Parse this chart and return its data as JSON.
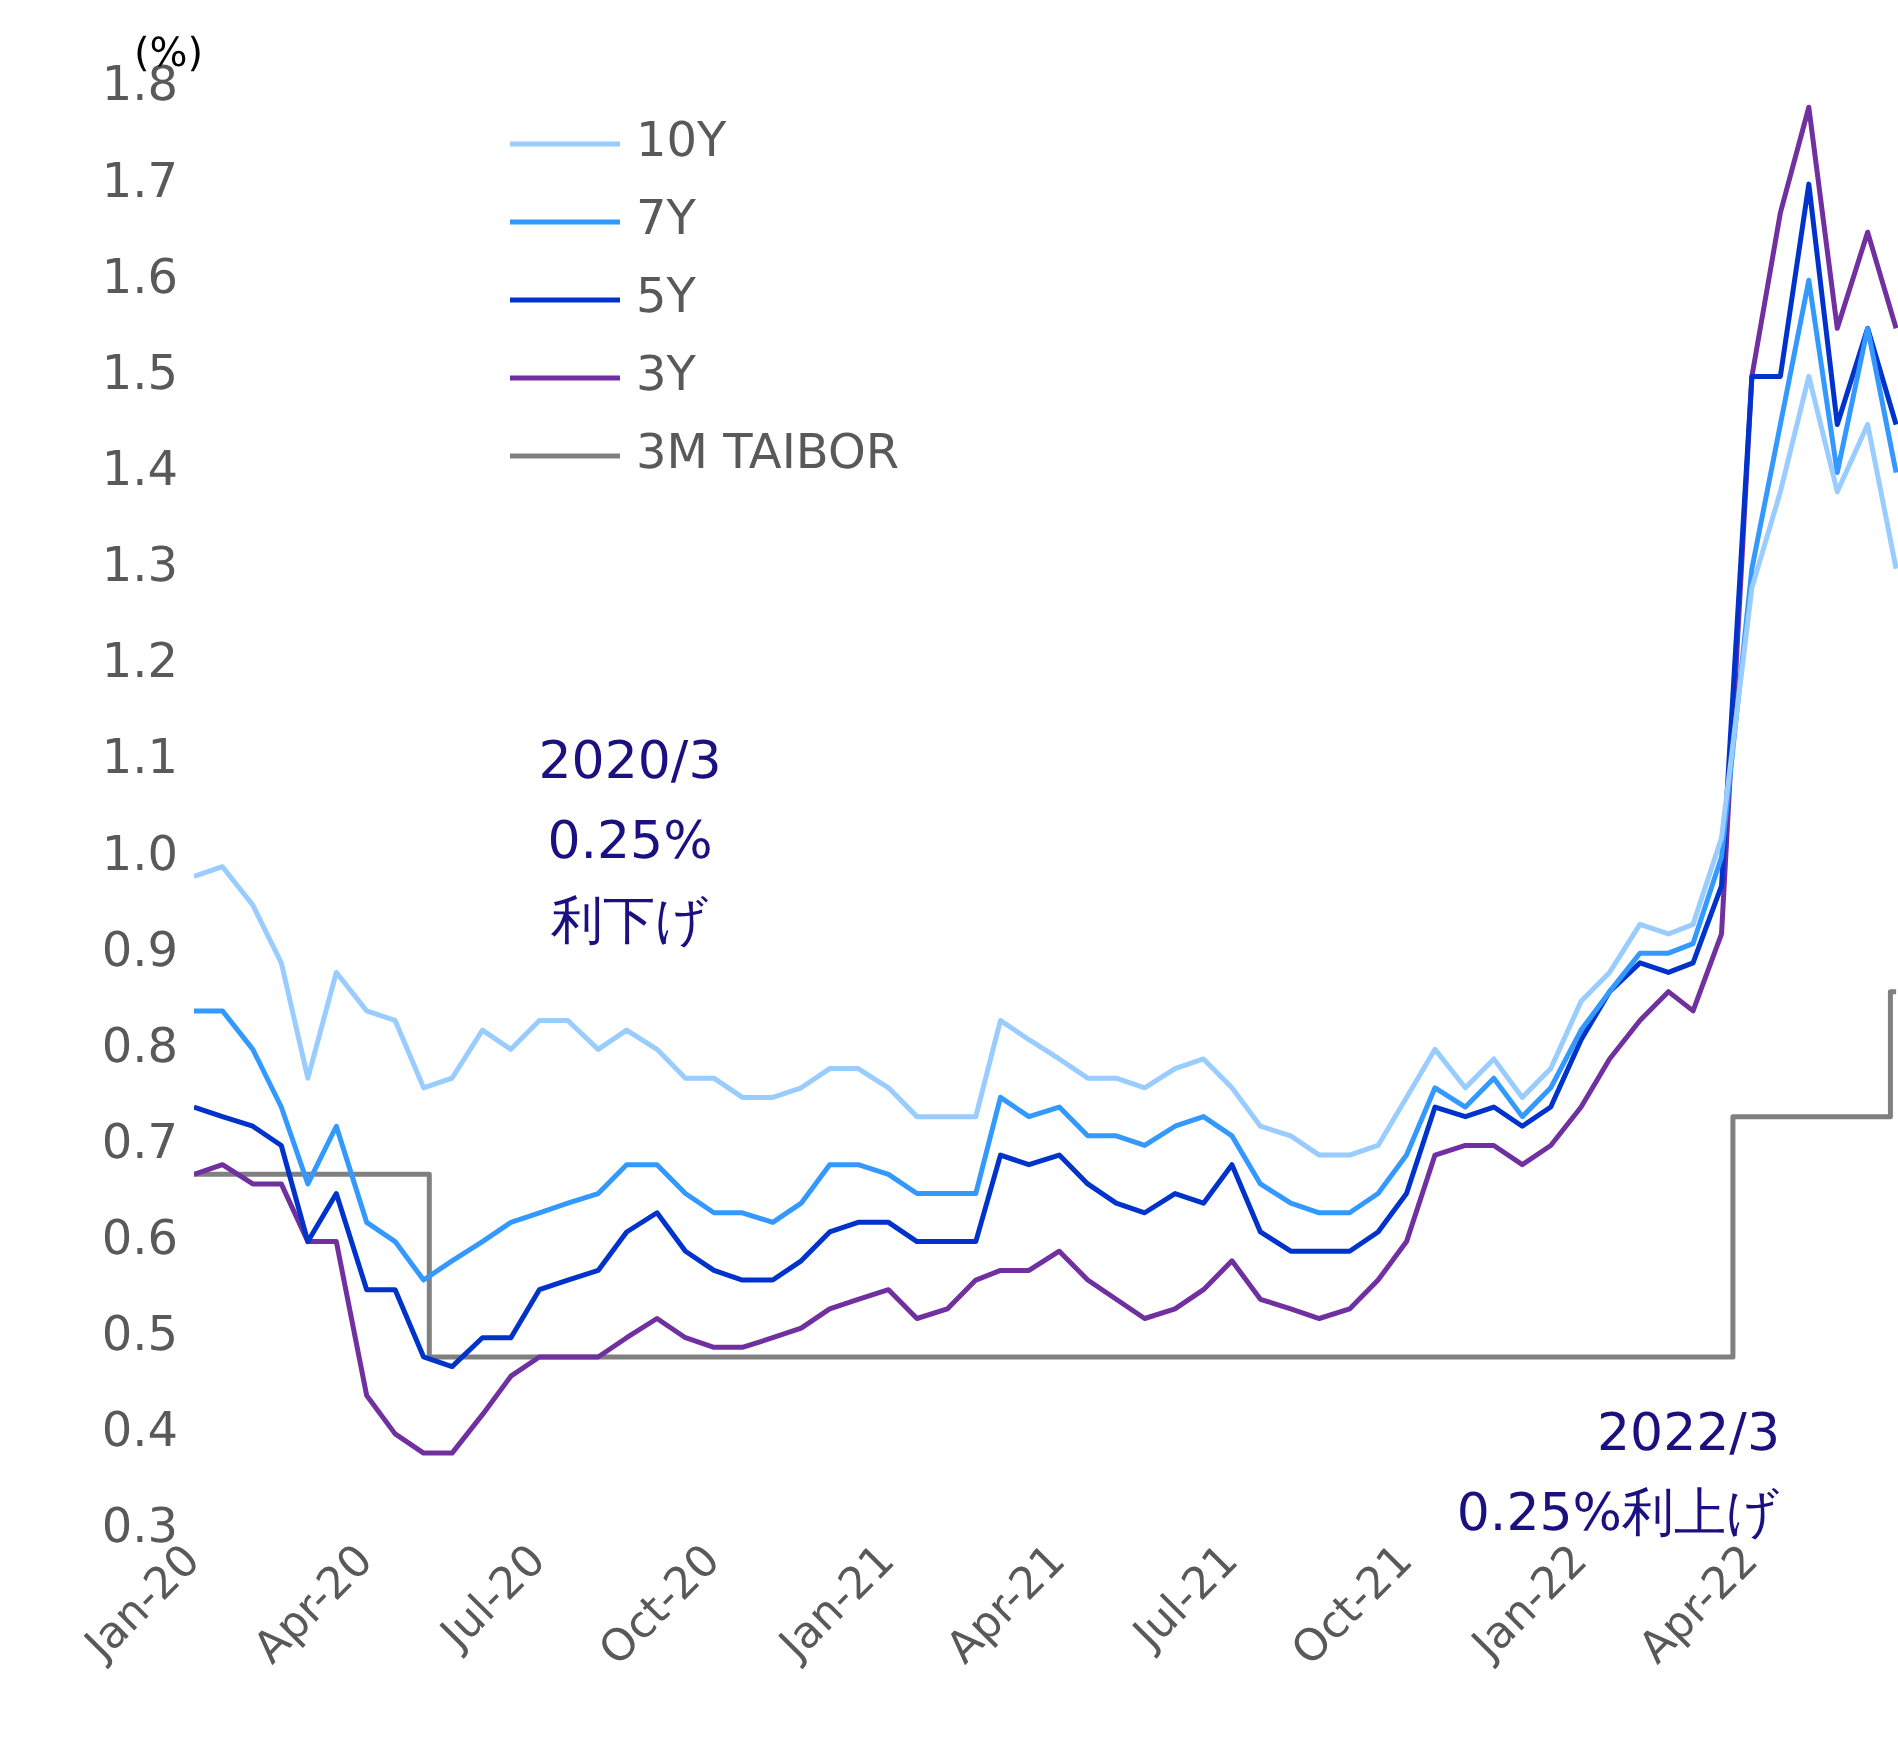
{
  "chart_data": {
    "type": "line",
    "ylabel": "(%)",
    "annotations": [
      "2020/3\n0.25%\n利下げ",
      "2022/3\n0.25%利上げ"
    ],
    "x": [
      "2020-01-01",
      "2020-01-16",
      "2020-02-01",
      "2020-02-16",
      "2020-03-01",
      "2020-03-16",
      "2020-04-01",
      "2020-04-16",
      "2020-05-01",
      "2020-05-16",
      "2020-06-01",
      "2020-06-16",
      "2020-07-01",
      "2020-07-16",
      "2020-08-01",
      "2020-08-16",
      "2020-09-01",
      "2020-09-16",
      "2020-10-01",
      "2020-10-16",
      "2020-11-01",
      "2020-11-16",
      "2020-12-01",
      "2020-12-16",
      "2021-01-01",
      "2021-01-16",
      "2021-02-01",
      "2021-02-16",
      "2021-03-01",
      "2021-03-16",
      "2021-04-01",
      "2021-04-16",
      "2021-05-01",
      "2021-05-16",
      "2021-06-01",
      "2021-06-16",
      "2021-07-01",
      "2021-07-16",
      "2021-08-01",
      "2021-08-16",
      "2021-09-01",
      "2021-09-16",
      "2021-10-01",
      "2021-10-16",
      "2021-11-01",
      "2021-11-16",
      "2021-12-01",
      "2021-12-16",
      "2022-01-01",
      "2022-01-16",
      "2022-02-01",
      "2022-02-16",
      "2022-03-01",
      "2022-03-16",
      "2022-04-01",
      "2022-04-16",
      "2022-05-01",
      "2022-05-16",
      "2022-06-01",
      "2022-06-16"
    ],
    "series": [
      {
        "name": "10Y",
        "color": "#99ccff",
        "values": [
          0.98,
          0.99,
          0.95,
          0.89,
          0.77,
          0.88,
          0.84,
          0.83,
          0.76,
          0.77,
          0.82,
          0.8,
          0.83,
          0.83,
          0.8,
          0.82,
          0.8,
          0.77,
          0.77,
          0.75,
          0.75,
          0.76,
          0.78,
          0.78,
          0.76,
          0.73,
          0.73,
          0.73,
          0.83,
          0.81,
          0.79,
          0.77,
          0.77,
          0.76,
          0.78,
          0.79,
          0.76,
          0.72,
          0.71,
          0.69,
          0.69,
          0.7,
          0.75,
          0.8,
          0.76,
          0.79,
          0.75,
          0.78,
          0.85,
          0.88,
          0.93,
          0.92,
          0.93,
          1.02,
          1.28,
          1.38,
          1.5,
          1.38,
          1.45,
          1.3
        ]
      },
      {
        "name": "7Y",
        "color": "#3399ff",
        "values": [
          0.84,
          0.84,
          0.8,
          0.74,
          0.66,
          0.72,
          0.62,
          0.6,
          0.56,
          0.58,
          0.6,
          0.62,
          0.63,
          0.64,
          0.65,
          0.68,
          0.68,
          0.65,
          0.63,
          0.63,
          0.62,
          0.64,
          0.68,
          0.68,
          0.67,
          0.65,
          0.65,
          0.65,
          0.75,
          0.73,
          0.74,
          0.71,
          0.71,
          0.7,
          0.72,
          0.73,
          0.71,
          0.66,
          0.64,
          0.63,
          0.63,
          0.65,
          0.69,
          0.76,
          0.74,
          0.77,
          0.73,
          0.76,
          0.82,
          0.86,
          0.9,
          0.9,
          0.91,
          1.0,
          1.3,
          1.45,
          1.6,
          1.4,
          1.55,
          1.4
        ]
      },
      {
        "name": "5Y",
        "color": "#0033cc",
        "values": [
          0.74,
          0.73,
          0.72,
          0.7,
          0.6,
          0.65,
          0.55,
          0.55,
          0.48,
          0.47,
          0.5,
          0.5,
          0.55,
          0.56,
          0.57,
          0.61,
          0.63,
          0.59,
          0.57,
          0.56,
          0.56,
          0.58,
          0.61,
          0.62,
          0.62,
          0.6,
          0.6,
          0.6,
          0.69,
          0.68,
          0.69,
          0.66,
          0.64,
          0.63,
          0.65,
          0.64,
          0.68,
          0.61,
          0.59,
          0.59,
          0.59,
          0.61,
          0.65,
          0.74,
          0.73,
          0.74,
          0.72,
          0.74,
          0.81,
          0.86,
          0.89,
          0.88,
          0.89,
          0.97,
          1.5,
          1.5,
          1.7,
          1.45,
          1.55,
          1.45
        ]
      },
      {
        "name": "3Y",
        "color": "#7030a0",
        "values": [
          0.67,
          0.68,
          0.66,
          0.66,
          0.6,
          0.6,
          0.44,
          0.4,
          0.38,
          0.38,
          0.42,
          0.46,
          0.48,
          0.48,
          0.48,
          0.5,
          0.52,
          0.5,
          0.49,
          0.49,
          0.5,
          0.51,
          0.53,
          0.54,
          0.55,
          0.52,
          0.53,
          0.56,
          0.57,
          0.57,
          0.59,
          0.56,
          0.54,
          0.52,
          0.53,
          0.55,
          0.58,
          0.54,
          0.53,
          0.52,
          0.53,
          0.56,
          0.6,
          0.69,
          0.7,
          0.7,
          0.68,
          0.7,
          0.74,
          0.79,
          0.83,
          0.86,
          0.84,
          0.92,
          1.5,
          1.67,
          1.78,
          1.55,
          1.65,
          1.55
        ]
      },
      {
        "name": "3M TAIBOR",
        "color": "#808080",
        "type": "step",
        "x": [
          "2020-01-01",
          "2020-05-04",
          "2022-03-22",
          "2022-06-13",
          "2022-06-16"
        ],
        "values": [
          0.67,
          0.48,
          0.73,
          0.86,
          0.86
        ]
      }
    ],
    "xlim": [
      "2020-01-01",
      "2022-06-17"
    ],
    "xticks": [
      {
        "value": "2020-01-01",
        "label": "Jan-20"
      },
      {
        "value": "2020-04-01",
        "label": "Apr-20"
      },
      {
        "value": "2020-07-01",
        "label": "Jul-20"
      },
      {
        "value": "2020-10-01",
        "label": "Oct-20"
      },
      {
        "value": "2021-01-01",
        "label": "Jan-21"
      },
      {
        "value": "2021-04-01",
        "label": "Apr-21"
      },
      {
        "value": "2021-07-01",
        "label": "Jul-21"
      },
      {
        "value": "2021-10-01",
        "label": "Oct-21"
      },
      {
        "value": "2022-01-01",
        "label": "Jan-22"
      },
      {
        "value": "2022-04-01",
        "label": "Apr-22"
      }
    ],
    "ylim": [
      0.3,
      1.8
    ],
    "yticks": [
      0.3,
      0.4,
      0.5,
      0.6,
      0.7,
      0.8,
      0.9,
      {
        "value": 1,
        "label": "1.0"
      },
      1.1,
      1.2,
      1.3,
      1.4,
      1.5,
      1.6,
      1.7,
      1.8
    ],
    "legend": "top left",
    "grid": false,
    "marker": "none",
    "line_style": "solid"
  }
}
